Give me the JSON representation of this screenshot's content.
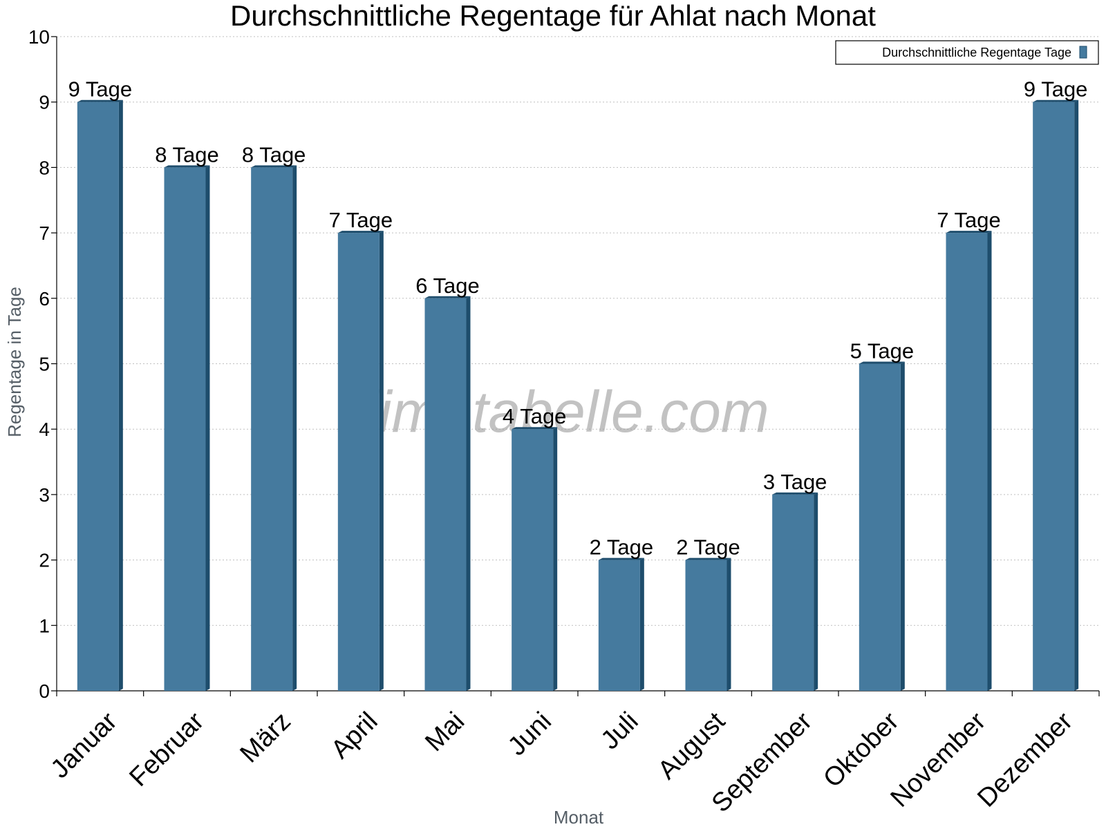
{
  "chart_data": {
    "type": "bar",
    "title": "Durchschnittliche Regentage für Ahlat nach Monat",
    "xlabel": "Monat",
    "ylabel": "Regentage in Tage",
    "ylim": [
      0,
      10
    ],
    "yticks": [
      "0",
      "1",
      "2",
      "3",
      "4",
      "5",
      "6",
      "7",
      "8",
      "9",
      "10"
    ],
    "grid": true,
    "legend_position": "top-right",
    "categories": [
      "Januar",
      "Februar",
      "März",
      "April",
      "Mai",
      "Juni",
      "Juli",
      "August",
      "September",
      "Oktober",
      "November",
      "Dezember"
    ],
    "series": [
      {
        "name": "Durchschnittliche Regentage Tage",
        "values": [
          9,
          8,
          8,
          7,
          6,
          4,
          2,
          2,
          3,
          5,
          7,
          9
        ],
        "labels": [
          "9 Tage",
          "8 Tage",
          "8 Tage",
          "7 Tage",
          "6 Tage",
          "4 Tage",
          "2 Tage",
          "2 Tage",
          "3 Tage",
          "5 Tage",
          "7 Tage",
          "9 Tage"
        ],
        "color": "#457a9e",
        "side_color": "#1e4d6c"
      }
    ],
    "watermark": "klimatabelle.com"
  }
}
